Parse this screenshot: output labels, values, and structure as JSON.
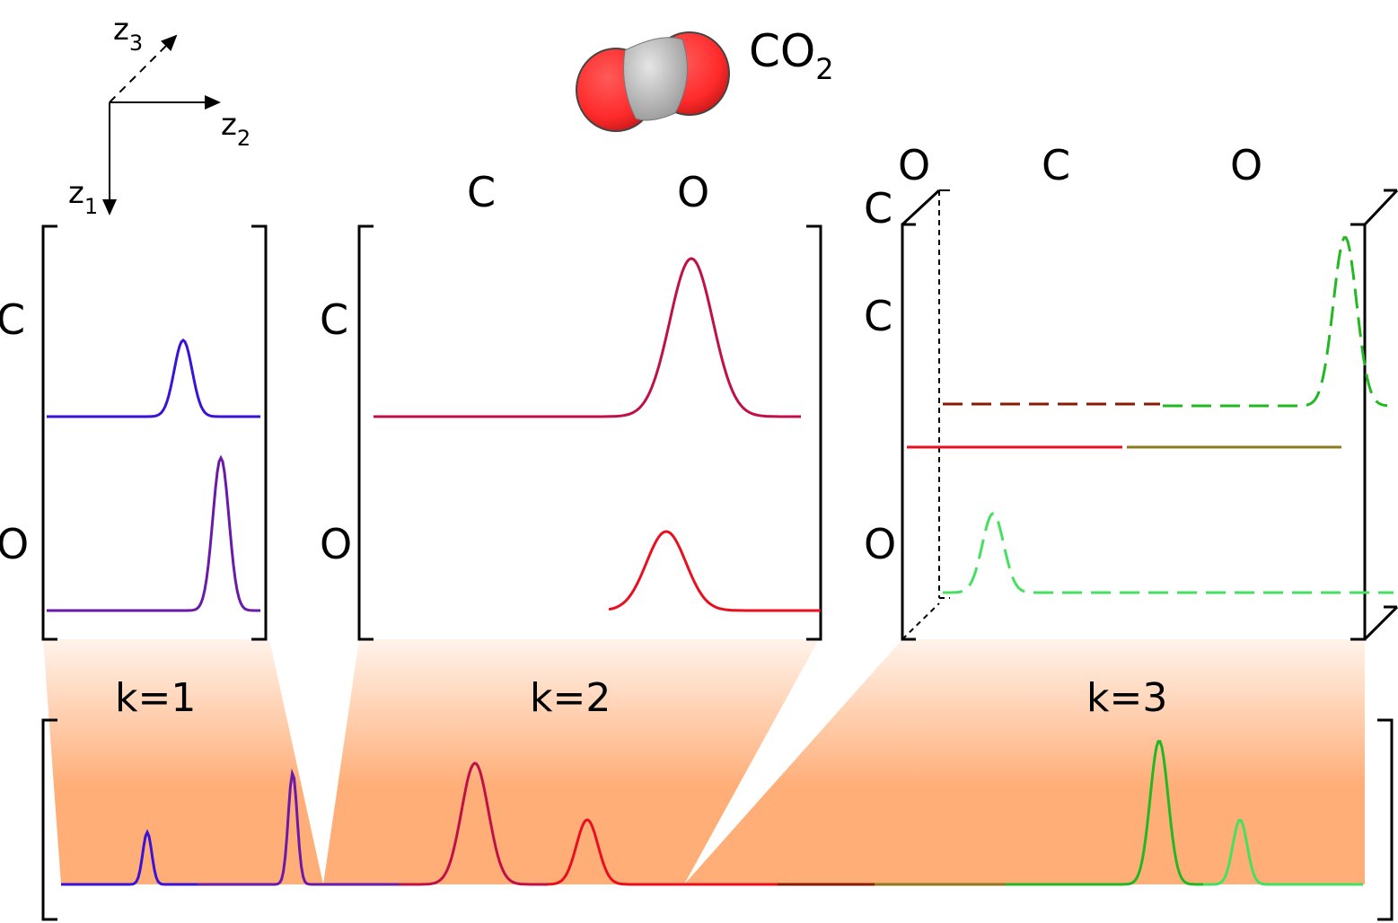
{
  "molecule": {
    "formula_main": "CO",
    "formula_sub": "2",
    "atom_colors": {
      "oxygen": "#ff2a2a",
      "carbon": "#c8c8c8"
    }
  },
  "axes": {
    "z1": {
      "base": "z",
      "sub": "1"
    },
    "z2": {
      "base": "z",
      "sub": "2"
    },
    "z3": {
      "base": "z",
      "sub": "3"
    }
  },
  "panels": {
    "k1": {
      "row_labels": [
        "C",
        "O"
      ]
    },
    "k2": {
      "col_labels": [
        "C",
        "O"
      ],
      "row_labels": [
        "C",
        "O"
      ]
    },
    "k3": {
      "depth_label": "O",
      "col_labels": [
        "C",
        "O"
      ],
      "depth_row_label": "C",
      "row_labels": [
        "C",
        "O"
      ]
    }
  },
  "bottom": {
    "labels": [
      "k=1",
      "k=2",
      "k=3"
    ],
    "fill_color": "#ffae78"
  },
  "colors": {
    "blue": "#3a12d8",
    "purple": "#6a1aa8",
    "crimson": "#c01048",
    "red": "#e8101e",
    "darkred": "#8a1a00",
    "olive": "#8c7a1e",
    "green": "#22b822",
    "lightgreen": "#44e060"
  }
}
